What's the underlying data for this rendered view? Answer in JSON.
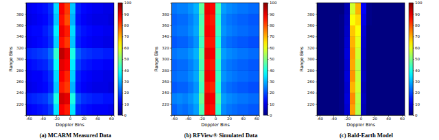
{
  "chart_data": [
    {
      "type": "heatmap",
      "title": "(a) MCARM Measured Data",
      "xlabel": "Doppler Bins",
      "ylabel": "Range Bins",
      "xlim": [
        -64,
        64
      ],
      "ylim": [
        200,
        400
      ],
      "xticks": [
        -60,
        -40,
        -20,
        0,
        20,
        40,
        60
      ],
      "yticks": [
        220,
        240,
        260,
        280,
        300,
        320,
        340,
        360,
        380
      ],
      "x": [
        -64,
        -56,
        -48,
        -40,
        -32,
        -24,
        -16,
        -8,
        0,
        8,
        16,
        24,
        32,
        40,
        48,
        56,
        64
      ],
      "y": [
        200,
        220,
        240,
        260,
        280,
        300,
        320,
        340,
        360,
        380,
        400
      ],
      "cells": [
        [
          12,
          13,
          14,
          15,
          18,
          35,
          88,
          85,
          35,
          16,
          14,
          13,
          12,
          12,
          12,
          11
        ],
        [
          15,
          16,
          17,
          18,
          22,
          40,
          92,
          90,
          40,
          20,
          17,
          16,
          15,
          15,
          14,
          14
        ],
        [
          10,
          11,
          12,
          13,
          16,
          32,
          85,
          82,
          30,
          14,
          12,
          11,
          10,
          10,
          10,
          9
        ],
        [
          11,
          12,
          12,
          14,
          17,
          34,
          88,
          84,
          33,
          15,
          13,
          12,
          11,
          11,
          10,
          10
        ],
        [
          13,
          14,
          15,
          16,
          20,
          38,
          90,
          88,
          36,
          18,
          15,
          14,
          13,
          13,
          12,
          12
        ],
        [
          16,
          17,
          18,
          19,
          23,
          42,
          94,
          90,
          40,
          21,
          18,
          17,
          16,
          16,
          15,
          15
        ],
        [
          11,
          12,
          13,
          14,
          17,
          33,
          86,
          82,
          32,
          15,
          13,
          12,
          11,
          11,
          10,
          10
        ],
        [
          12,
          13,
          13,
          15,
          18,
          36,
          89,
          85,
          34,
          16,
          14,
          13,
          12,
          12,
          11,
          11
        ],
        [
          10,
          11,
          12,
          13,
          16,
          32,
          86,
          80,
          30,
          14,
          12,
          11,
          10,
          10,
          10,
          9
        ],
        [
          11,
          12,
          13,
          14,
          17,
          34,
          88,
          82,
          32,
          15,
          13,
          12,
          11,
          11,
          10,
          10
        ]
      ],
      "colorbar_range": [
        0,
        100
      ],
      "colorbar_ticks": [
        0,
        10,
        20,
        30,
        40,
        50,
        60,
        70,
        80,
        90,
        100
      ]
    },
    {
      "type": "heatmap",
      "title": "(b) RFView® Simulated Data",
      "xlabel": "Doppler Bins",
      "ylabel": "Range Bins",
      "xlim": [
        -64,
        64
      ],
      "ylim": [
        200,
        400
      ],
      "xticks": [
        -60,
        -40,
        -20,
        0,
        20,
        40,
        60
      ],
      "yticks": [
        220,
        240,
        260,
        280,
        300,
        320,
        340,
        360,
        380
      ],
      "x": [
        -64,
        -56,
        -48,
        -40,
        -32,
        -24,
        -16,
        -8,
        0,
        8,
        16,
        24,
        32,
        40,
        48,
        56,
        64
      ],
      "y": [
        200,
        220,
        240,
        260,
        280,
        300,
        320,
        340,
        360,
        380,
        400
      ],
      "cells": [
        [
          22,
          24,
          23,
          25,
          28,
          45,
          88,
          86,
          42,
          26,
          24,
          23,
          22,
          22,
          21,
          21
        ],
        [
          25,
          26,
          25,
          27,
          30,
          48,
          90,
          88,
          45,
          28,
          26,
          25,
          24,
          24,
          23,
          23
        ],
        [
          21,
          22,
          22,
          24,
          27,
          44,
          86,
          84,
          41,
          25,
          23,
          22,
          21,
          21,
          20,
          20
        ],
        [
          23,
          24,
          24,
          26,
          29,
          46,
          89,
          87,
          43,
          27,
          25,
          24,
          23,
          23,
          22,
          22
        ],
        [
          22,
          23,
          23,
          25,
          28,
          45,
          87,
          85,
          42,
          26,
          24,
          23,
          22,
          22,
          21,
          21
        ],
        [
          24,
          25,
          25,
          27,
          30,
          47,
          90,
          88,
          44,
          28,
          26,
          25,
          24,
          24,
          23,
          23
        ],
        [
          21,
          22,
          22,
          24,
          27,
          44,
          86,
          85,
          41,
          25,
          23,
          22,
          21,
          21,
          20,
          20
        ],
        [
          23,
          24,
          24,
          26,
          29,
          46,
          88,
          86,
          43,
          27,
          25,
          24,
          23,
          23,
          22,
          22
        ],
        [
          22,
          23,
          23,
          25,
          28,
          45,
          87,
          85,
          42,
          26,
          24,
          23,
          22,
          22,
          21,
          21
        ],
        [
          24,
          25,
          25,
          27,
          30,
          47,
          89,
          87,
          44,
          28,
          26,
          25,
          24,
          24,
          23,
          23
        ]
      ],
      "colorbar_range": [
        0,
        100
      ],
      "colorbar_ticks": [
        0,
        10,
        20,
        30,
        40,
        50,
        60,
        70,
        80,
        90,
        100
      ]
    },
    {
      "type": "heatmap",
      "title": "(c) Bald-Earth Model",
      "xlabel": "Doppler Bins",
      "ylabel": "Range Bins",
      "xlim": [
        -64,
        64
      ],
      "ylim": [
        200,
        400
      ],
      "xticks": [
        -60,
        -40,
        -20,
        0,
        20,
        40,
        60
      ],
      "yticks": [
        220,
        240,
        260,
        280,
        300,
        320,
        340,
        360,
        380
      ],
      "x": [
        -64,
        -56,
        -48,
        -40,
        -32,
        -24,
        -16,
        -8,
        0,
        8,
        16,
        24,
        32,
        40,
        48,
        56,
        64
      ],
      "y": [
        200,
        220,
        240,
        260,
        280,
        300,
        320,
        340,
        360,
        380,
        400
      ],
      "cells": [
        [
          0,
          0,
          0,
          0,
          1,
          8,
          72,
          55,
          5,
          0,
          0,
          0,
          0,
          0,
          0,
          0
        ],
        [
          0,
          0,
          0,
          0,
          1,
          9,
          74,
          56,
          6,
          0,
          0,
          0,
          0,
          0,
          0,
          0
        ],
        [
          0,
          0,
          0,
          0,
          1,
          8,
          70,
          58,
          5,
          0,
          0,
          0,
          0,
          0,
          0,
          0
        ],
        [
          0,
          0,
          0,
          0,
          1,
          9,
          73,
          57,
          6,
          0,
          0,
          0,
          0,
          0,
          0,
          0
        ],
        [
          0,
          0,
          0,
          0,
          1,
          8,
          71,
          56,
          5,
          0,
          0,
          0,
          0,
          0,
          0,
          0
        ],
        [
          0,
          0,
          0,
          0,
          1,
          9,
          72,
          58,
          6,
          0,
          0,
          0,
          0,
          0,
          0,
          0
        ],
        [
          0,
          0,
          0,
          0,
          1,
          8,
          70,
          60,
          7,
          0,
          0,
          0,
          0,
          0,
          0,
          0
        ],
        [
          0,
          0,
          0,
          0,
          1,
          7,
          68,
          62,
          8,
          0,
          0,
          0,
          0,
          0,
          0,
          0
        ],
        [
          0,
          0,
          0,
          0,
          1,
          6,
          62,
          66,
          10,
          1,
          0,
          0,
          0,
          0,
          0,
          0
        ],
        [
          0,
          0,
          0,
          0,
          0,
          5,
          58,
          70,
          12,
          1,
          0,
          0,
          0,
          0,
          0,
          0
        ]
      ],
      "colorbar_range": [
        0,
        100
      ],
      "colorbar_ticks": [
        0,
        10,
        20,
        30,
        40,
        50,
        60,
        70,
        80,
        90,
        100
      ]
    }
  ]
}
